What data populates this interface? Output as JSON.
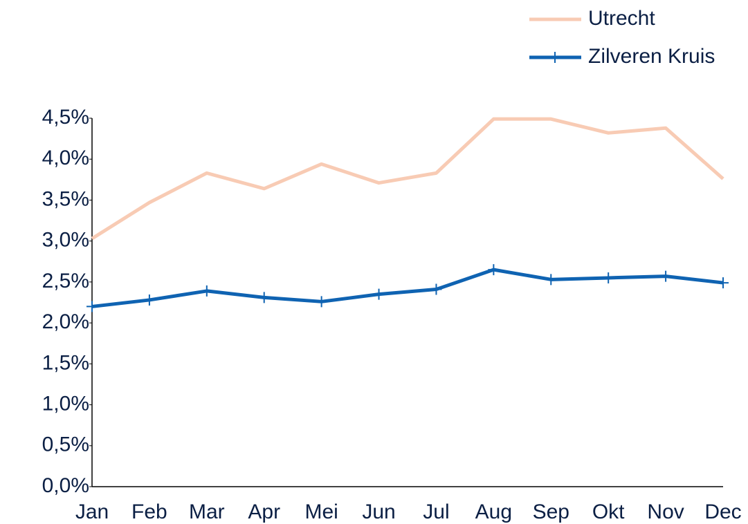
{
  "chart_data": {
    "type": "line",
    "categories": [
      "Jan",
      "Feb",
      "Mar",
      "Apr",
      "Mei",
      "Jun",
      "Jul",
      "Aug",
      "Sep",
      "Okt",
      "Nov",
      "Dec"
    ],
    "series": [
      {
        "name": "Utrecht",
        "color": "#f8cbb4",
        "values": [
          3.03,
          3.47,
          3.83,
          3.64,
          3.94,
          3.71,
          3.83,
          4.49,
          4.49,
          4.32,
          4.38,
          3.76
        ]
      },
      {
        "name": "Zilveren Kruis",
        "color": "#0f63b2",
        "marker": "+",
        "values": [
          2.2,
          2.28,
          2.39,
          2.31,
          2.26,
          2.35,
          2.41,
          2.65,
          2.53,
          2.55,
          2.57,
          2.49
        ]
      }
    ],
    "ylim": [
      0,
      4.5
    ],
    "yticks": [
      {
        "value": 0,
        "label": "0,0%"
      },
      {
        "value": 0.5,
        "label": "0,5%"
      },
      {
        "value": 1,
        "label": "1,0%"
      },
      {
        "value": 1.5,
        "label": "1,5%"
      },
      {
        "value": 2,
        "label": "2,0%"
      },
      {
        "value": 2.5,
        "label": "2,5%"
      },
      {
        "value": 3,
        "label": "3,0%"
      },
      {
        "value": 3.5,
        "label": "3,5%"
      },
      {
        "value": 4,
        "label": "4,0%"
      },
      {
        "value": 4.5,
        "label": "4,5%"
      }
    ],
    "grid": false,
    "legend": "top-right"
  }
}
